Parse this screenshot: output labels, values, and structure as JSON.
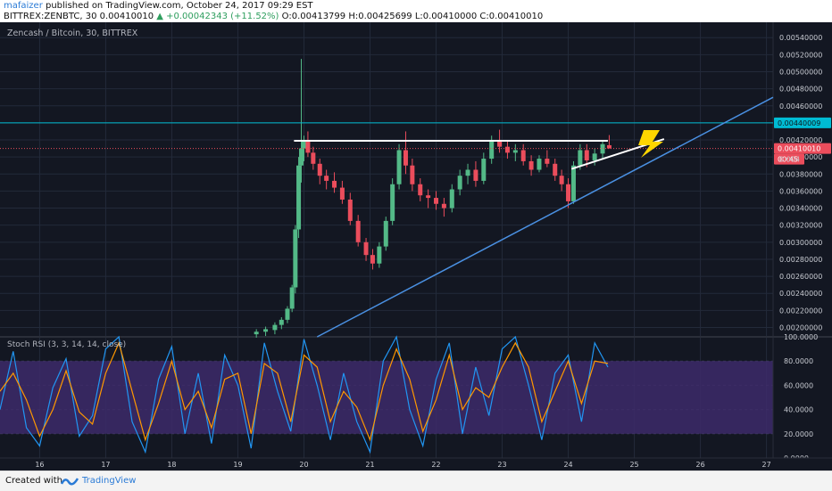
{
  "header": {
    "author": "mafaizer",
    "published": "published on TradingView.com, October 24, 2017 09:29 EST",
    "symbol": "BITTREX:ZENBTC, 30",
    "last": "0.00410010",
    "change": "▲ +0.00042343 (+11.52%)",
    "ohlc": "O:0.00413799 H:0.00425699 L:0.00410000 C:0.00410010"
  },
  "chart_title": "Zencash / Bitcoin, 30, BITTREX",
  "indicator_title": "Stoch RSI (3, 3, 14, 14, close)",
  "footer": {
    "created": "Created with",
    "brand": "TradingView"
  },
  "colors": {
    "background": "#131722",
    "grid": "#232a3a",
    "up": "#53b987",
    "down": "#eb4d5c",
    "hline": "#00bcd4",
    "price_line": "#eb4d5c",
    "trendline": "#4a90e2",
    "drawn_line": "#ffffff",
    "lightning": "#ffd600",
    "k_line": "#2196f3",
    "d_line": "#ff9800",
    "rsi_band": "#3d2a6a"
  },
  "chart_data": [
    {
      "type": "candlestick",
      "title": "Zencash / Bitcoin, 30, BITTREX",
      "xlabel": "",
      "ylabel": "",
      "x_ticks": [
        "16",
        "17",
        "18",
        "19",
        "20",
        "21",
        "22",
        "23",
        "24",
        "25",
        "26",
        "27"
      ],
      "y_ticks": [
        "0.00200000",
        "0.00220000",
        "0.00240000",
        "0.00260000",
        "0.00280000",
        "0.00300000",
        "0.00320000",
        "0.00340000",
        "0.00360000",
        "0.00380000",
        "0.00400000",
        "0.00420000",
        "0.00440000",
        "0.00460000",
        "0.00480000",
        "0.00500000",
        "0.00520000",
        "0.00540000"
      ],
      "x_range": [
        15.4,
        27.1
      ],
      "ylim": [
        0.00189,
        0.00558
      ],
      "grid": true,
      "series": [
        {
          "name": "",
          "values": [
            [
              19.28,
              0.00192,
              0.00198,
              0.00188,
              0.00195
            ],
            [
              19.42,
              0.00195,
              0.00201,
              0.0019,
              0.00198
            ],
            [
              19.56,
              0.00197,
              0.00206,
              0.00192,
              0.00203
            ],
            [
              19.66,
              0.00203,
              0.00212,
              0.00198,
              0.00209
            ],
            [
              19.75,
              0.00209,
              0.00225,
              0.00205,
              0.00222
            ],
            [
              19.82,
              0.00222,
              0.0025,
              0.00218,
              0.00247
            ],
            [
              19.87,
              0.00247,
              0.0032,
              0.0024,
              0.00315
            ],
            [
              19.92,
              0.00315,
              0.004,
              0.00305,
              0.0039
            ],
            [
              19.96,
              0.0039,
              0.00515,
              0.0037,
              0.0041
            ],
            [
              20.0,
              0.0041,
              0.00425,
              0.00395,
              0.00418
            ],
            [
              20.06,
              0.00418,
              0.0043,
              0.004,
              0.00405
            ],
            [
              20.14,
              0.00405,
              0.00412,
              0.00385,
              0.00392
            ],
            [
              20.24,
              0.00392,
              0.00398,
              0.00368,
              0.00378
            ],
            [
              20.34,
              0.00378,
              0.00385,
              0.00362,
              0.00372
            ],
            [
              20.46,
              0.00372,
              0.00382,
              0.00358,
              0.00364
            ],
            [
              20.58,
              0.00364,
              0.00372,
              0.00345,
              0.0035
            ],
            [
              20.7,
              0.0035,
              0.00358,
              0.0032,
              0.00325
            ],
            [
              20.82,
              0.00325,
              0.00332,
              0.00295,
              0.003
            ],
            [
              20.94,
              0.003,
              0.00305,
              0.00278,
              0.00285
            ],
            [
              21.04,
              0.00285,
              0.00292,
              0.00268,
              0.00275
            ],
            [
              21.14,
              0.00275,
              0.003,
              0.0027,
              0.00295
            ],
            [
              21.24,
              0.00295,
              0.0033,
              0.0029,
              0.00325
            ],
            [
              21.34,
              0.00325,
              0.00375,
              0.0032,
              0.00368
            ],
            [
              21.44,
              0.00368,
              0.00415,
              0.00362,
              0.00408
            ],
            [
              21.54,
              0.00408,
              0.0043,
              0.0038,
              0.0039
            ],
            [
              21.64,
              0.0039,
              0.00398,
              0.0036,
              0.00368
            ],
            [
              21.76,
              0.00368,
              0.00375,
              0.00348,
              0.00355
            ],
            [
              21.88,
              0.00355,
              0.00362,
              0.0034,
              0.00352
            ],
            [
              22.0,
              0.00352,
              0.0036,
              0.00338,
              0.00345
            ],
            [
              22.12,
              0.00345,
              0.00352,
              0.0033,
              0.0034
            ],
            [
              22.24,
              0.0034,
              0.00368,
              0.00335,
              0.00362
            ],
            [
              22.36,
              0.00362,
              0.00385,
              0.00355,
              0.00378
            ],
            [
              22.48,
              0.00378,
              0.00392,
              0.00368,
              0.00385
            ],
            [
              22.6,
              0.00385,
              0.00395,
              0.00365,
              0.00372
            ],
            [
              22.72,
              0.00372,
              0.00405,
              0.00368,
              0.00398
            ],
            [
              22.84,
              0.00398,
              0.00425,
              0.00392,
              0.00418
            ],
            [
              22.96,
              0.00418,
              0.00432,
              0.00405,
              0.00412
            ],
            [
              23.08,
              0.00412,
              0.0042,
              0.00398,
              0.00405
            ],
            [
              23.2,
              0.00405,
              0.00415,
              0.00395,
              0.00408
            ],
            [
              23.32,
              0.00408,
              0.00415,
              0.0039,
              0.00395
            ],
            [
              23.44,
              0.00395,
              0.00402,
              0.00378,
              0.00385
            ],
            [
              23.56,
              0.00385,
              0.00402,
              0.00382,
              0.00398
            ],
            [
              23.68,
              0.00398,
              0.00408,
              0.00388,
              0.00392
            ],
            [
              23.8,
              0.00392,
              0.00398,
              0.00372,
              0.00378
            ],
            [
              23.9,
              0.00378,
              0.00385,
              0.0036,
              0.00368
            ],
            [
              24.0,
              0.00368,
              0.00375,
              0.0034,
              0.00348
            ],
            [
              24.08,
              0.00348,
              0.00395,
              0.00345,
              0.0039
            ],
            [
              24.18,
              0.0039,
              0.00415,
              0.00385,
              0.00408
            ],
            [
              24.28,
              0.00408,
              0.00415,
              0.00388,
              0.00396
            ],
            [
              24.4,
              0.00396,
              0.0041,
              0.0039,
              0.00404
            ],
            [
              24.52,
              0.00404,
              0.0042,
              0.00398,
              0.00415
            ],
            [
              24.62,
              0.00413799,
              0.00425699,
              0.0041,
              0.0041001
            ]
          ]
        }
      ],
      "current_price": {
        "label": "0.00410010",
        "countdown": "00:45",
        "value": 0.0041001
      },
      "horizontal_line": {
        "label": "0.00440009",
        "value": 0.00440009
      },
      "partial_tick": "0.004",
      "drawings": {
        "resistance": [
          [
            19.85,
            0.00419
          ],
          [
            24.6,
            0.00419
          ]
        ],
        "ascending_trendline": [
          [
            20.2,
            0.00189
          ],
          [
            27.1,
            0.0047
          ]
        ],
        "upper_trendline": [
          [
            24.05,
            0.00386
          ],
          [
            25.45,
            0.00421
          ]
        ]
      }
    },
    {
      "type": "line",
      "title": "Stoch RSI (3, 3, 14, 14, close)",
      "xlabel": "",
      "ylabel": "",
      "x_ticks": [
        "16",
        "17",
        "18",
        "19",
        "20",
        "21",
        "22",
        "23",
        "24",
        "25",
        "26",
        "27"
      ],
      "y_ticks": [
        "0.0000",
        "20.0000",
        "40.0000",
        "60.0000",
        "80.0000",
        "100.0000"
      ],
      "ylim": [
        0,
        100
      ],
      "band": [
        20,
        80
      ],
      "grid": true,
      "x": [
        15.4,
        15.6,
        15.8,
        16.0,
        16.2,
        16.4,
        16.6,
        16.8,
        17.0,
        17.2,
        17.4,
        17.6,
        17.8,
        18.0,
        18.2,
        18.4,
        18.6,
        18.8,
        19.0,
        19.2,
        19.4,
        19.6,
        19.8,
        20.0,
        20.2,
        20.4,
        20.6,
        20.8,
        21.0,
        21.2,
        21.4,
        21.6,
        21.8,
        22.0,
        22.2,
        22.4,
        22.6,
        22.8,
        23.0,
        23.2,
        23.4,
        23.6,
        23.8,
        24.0,
        24.2,
        24.4,
        24.6
      ],
      "series": [
        {
          "name": "",
          "values": [
            40,
            88,
            25,
            10,
            58,
            82,
            18,
            35,
            90,
            100,
            30,
            5,
            65,
            92,
            20,
            70,
            12,
            85,
            60,
            8,
            95,
            55,
            22,
            98,
            60,
            15,
            70,
            30,
            5,
            80,
            100,
            40,
            10,
            65,
            95,
            20,
            75,
            35,
            90,
            100,
            60,
            15,
            70,
            85,
            30,
            95,
            75
          ]
        },
        {
          "name": "",
          "values": [
            55,
            70,
            48,
            18,
            40,
            72,
            38,
            28,
            70,
            95,
            55,
            15,
            45,
            80,
            40,
            55,
            25,
            65,
            70,
            20,
            78,
            70,
            30,
            85,
            75,
            30,
            55,
            42,
            15,
            60,
            90,
            65,
            22,
            48,
            85,
            40,
            58,
            50,
            75,
            95,
            75,
            30,
            55,
            80,
            45,
            80,
            78
          ]
        }
      ]
    }
  ]
}
